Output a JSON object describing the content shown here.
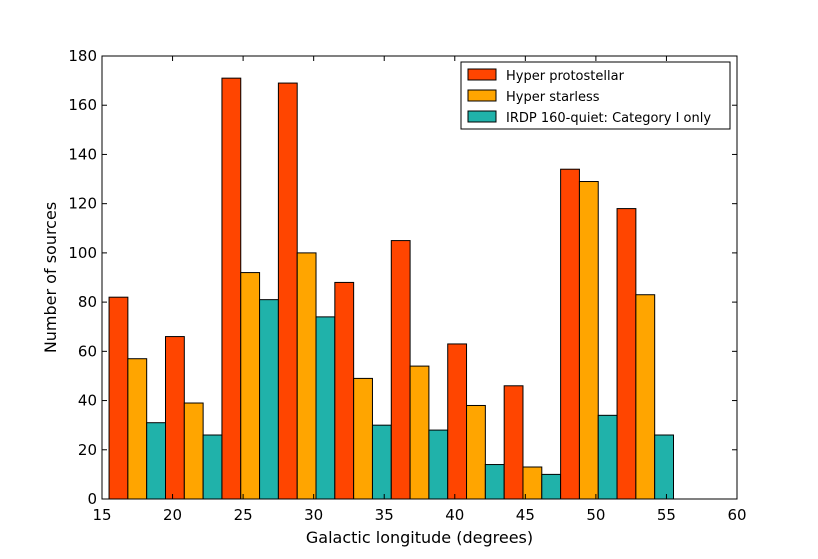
{
  "chart_data": {
    "type": "bar",
    "title": "",
    "xlabel": "Galactic longitude (degrees)",
    "ylabel": "Number of sources",
    "xlim": [
      15,
      60
    ],
    "ylim": [
      0,
      180
    ],
    "xticks": [
      15,
      20,
      25,
      30,
      35,
      40,
      45,
      50,
      55,
      60
    ],
    "yticks": [
      0,
      20,
      40,
      60,
      80,
      100,
      120,
      140,
      160,
      180
    ],
    "grid": false,
    "legend_position": "top-right",
    "bin_edges": [
      15.5,
      19.5,
      23.5,
      27.5,
      31.5,
      35.5,
      39.5,
      43.5,
      47.5,
      51.5,
      55.5
    ],
    "series": [
      {
        "name": "Hyper protostellar",
        "color": "#ff4500",
        "values": [
          82,
          66,
          171,
          169,
          88,
          105,
          63,
          46,
          134,
          118
        ]
      },
      {
        "name": "Hyper starless",
        "color": "#ffa500",
        "values": [
          57,
          39,
          92,
          100,
          49,
          54,
          38,
          13,
          129,
          83
        ]
      },
      {
        "name": "IRDP 160-quiet: Category I only",
        "color": "#20b2aa",
        "values": [
          31,
          26,
          81,
          74,
          30,
          28,
          14,
          10,
          34,
          26
        ]
      }
    ]
  }
}
